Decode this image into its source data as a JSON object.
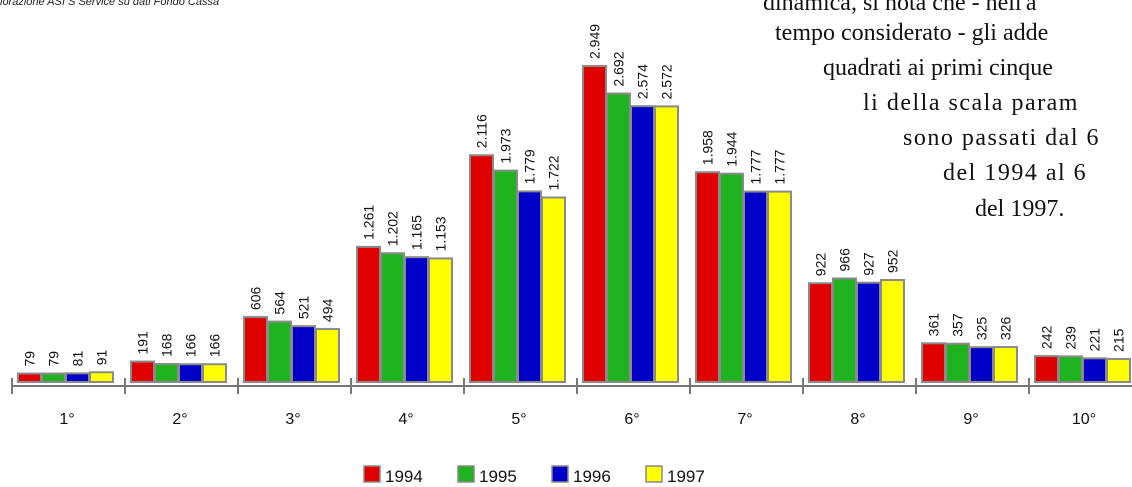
{
  "source_note": "lorazione ASI S Service su dati  Fondo Cassa",
  "annotation": [
    "dinamica, si nota che - nell'a",
    "tempo considerato - gli adde",
    "quadrati ai primi cinque",
    "li della scala param",
    "sono passati dal 6",
    "del 1994 al 6",
    "del 1997."
  ],
  "colors": {
    "1994": "#e00000",
    "1995": "#1fb41f",
    "1996": "#0000c8",
    "1997": "#ffff00",
    "bar_border": "#8a8a8a",
    "axis": "#777777"
  },
  "chart_data": {
    "type": "bar",
    "categories": [
      "1°",
      "2°",
      "3°",
      "4°",
      "5°",
      "6°",
      "7°",
      "8°",
      "9°",
      "10°"
    ],
    "series": [
      {
        "name": "1994",
        "values": [
          79,
          191,
          606,
          1261,
          2116,
          2949,
          1958,
          922,
          361,
          242
        ],
        "labels": [
          "79",
          "191",
          "606",
          "1.261",
          "2.116",
          "2.949",
          "1.958",
          "922",
          "361",
          "242"
        ]
      },
      {
        "name": "1995",
        "values": [
          79,
          168,
          564,
          1202,
          1973,
          2692,
          1944,
          966,
          357,
          239
        ],
        "labels": [
          "79",
          "168",
          "564",
          "1.202",
          "1.973",
          "2.692",
          "1.944",
          "966",
          "357",
          "239"
        ]
      },
      {
        "name": "1996",
        "values": [
          81,
          166,
          521,
          1165,
          1779,
          2574,
          1777,
          927,
          325,
          221
        ],
        "labels": [
          "81",
          "166",
          "521",
          "1.165",
          "1.779",
          "2.574",
          "1.777",
          "927",
          "325",
          "221"
        ]
      },
      {
        "name": "1997",
        "values": [
          91,
          166,
          494,
          1153,
          1722,
          2572,
          1777,
          952,
          326,
          215
        ],
        "labels": [
          "91",
          "166",
          "494",
          "1.153",
          "1.722",
          "2.572",
          "1.777",
          "952",
          "326",
          "215"
        ]
      }
    ],
    "ylim": [
      0,
      2949
    ],
    "grid": false,
    "legend_placement": "bottom-center",
    "title": "",
    "xlabel": "",
    "ylabel": ""
  }
}
